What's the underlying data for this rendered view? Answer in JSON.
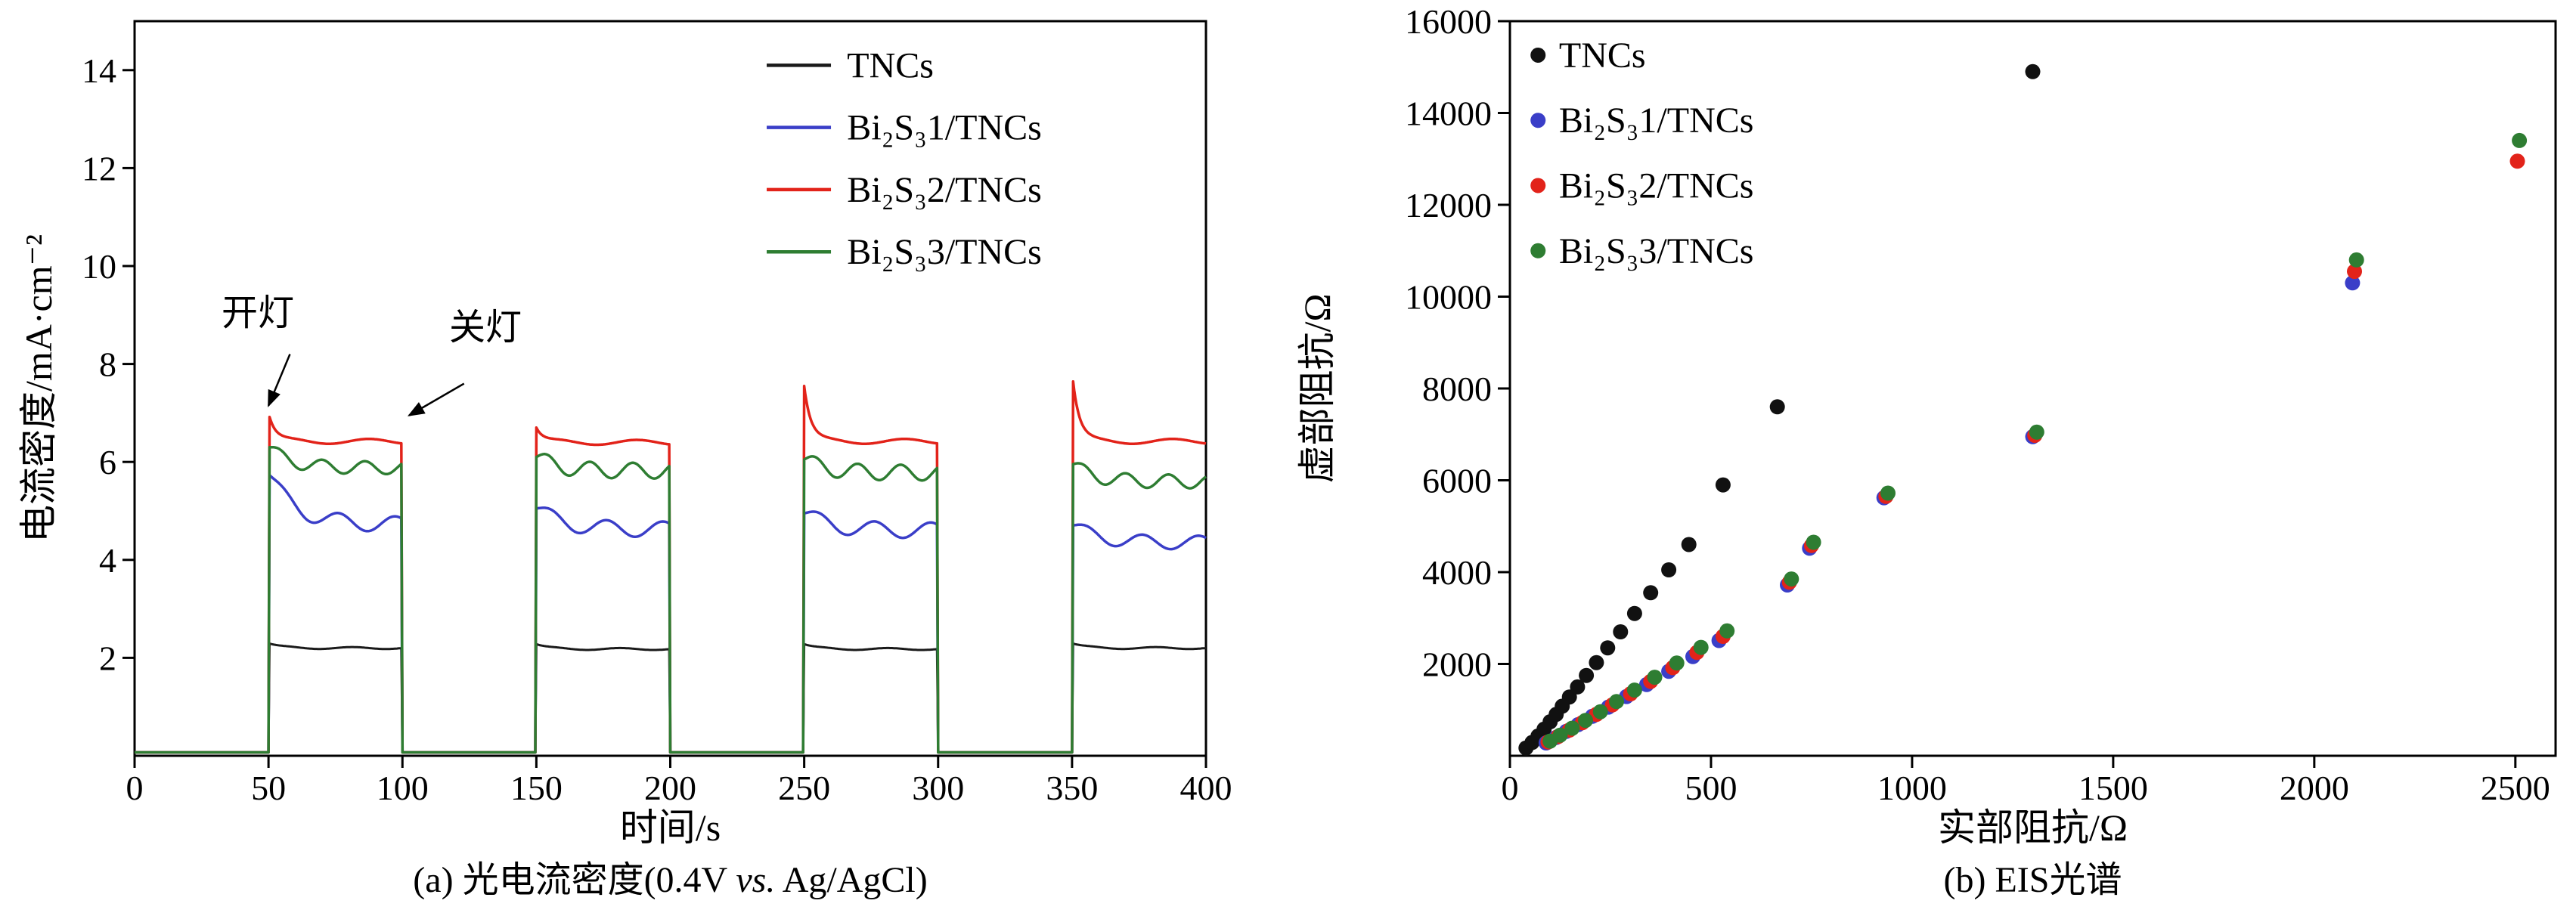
{
  "panel_a": {
    "caption_prefix": "(a) 光电流密度(0.4V ",
    "caption_vs": "vs.",
    "caption_suffix": " Ag/AgCl)"
  },
  "panel_b": {
    "caption": "(b) EIS光谱"
  },
  "chart_data": [
    {
      "type": "line",
      "name": "photocurrent",
      "title": "",
      "xlabel": "时间/s",
      "ylabel": "电流密度/mA·cm⁻²",
      "xlim": [
        0,
        400
      ],
      "ylim": [
        0,
        15
      ],
      "xticks": [
        0,
        50,
        100,
        150,
        200,
        250,
        300,
        350,
        400
      ],
      "yticks": [
        2,
        4,
        6,
        8,
        10,
        12,
        14
      ],
      "grid": false,
      "light_on_intervals": [
        [
          50,
          100
        ],
        [
          150,
          200
        ],
        [
          250,
          300
        ],
        [
          350,
          400
        ]
      ],
      "off_level": 0.07,
      "series": [
        {
          "name": "TNCs",
          "color": "#1a1a1a",
          "decay": 4,
          "wave_period": 25,
          "cycles": [
            {
              "spike": 2.3,
              "plateau": 2.2,
              "wave": 0.02
            },
            {
              "spike": 2.28,
              "plateau": 2.18,
              "wave": 0.02
            },
            {
              "spike": 2.28,
              "plateau": 2.18,
              "wave": 0.02
            },
            {
              "spike": 2.3,
              "plateau": 2.2,
              "wave": 0.02
            }
          ]
        },
        {
          "name": "Bi₂S₃1/TNCs",
          "color": "#3a3ec8",
          "decay": 10,
          "wave_period": 21,
          "cycles": [
            {
              "spike": 5.75,
              "plateau": 4.72,
              "wave": 0.16
            },
            {
              "spike": 5.05,
              "plateau": 4.62,
              "wave": 0.16
            },
            {
              "spike": 4.95,
              "plateau": 4.6,
              "wave": 0.16
            },
            {
              "spike": 4.7,
              "plateau": 4.35,
              "wave": 0.14
            }
          ]
        },
        {
          "name": "Bi₂S₃2/TNCs",
          "color": "#e2231a",
          "decay": 2.5,
          "wave_period": 30,
          "cycles": [
            {
              "spike": 7.0,
              "plateau": 6.42,
              "wave": 0.05
            },
            {
              "spike": 6.7,
              "plateau": 6.4,
              "wave": 0.05
            },
            {
              "spike": 7.55,
              "plateau": 6.42,
              "wave": 0.05
            },
            {
              "spike": 7.85,
              "plateau": 6.42,
              "wave": 0.05
            }
          ]
        },
        {
          "name": "Bi₂S₃3/TNCs",
          "color": "#2e7d32",
          "decay": 8,
          "wave_period": 16,
          "cycles": [
            {
              "spike": 6.3,
              "plateau": 5.88,
              "wave": 0.13
            },
            {
              "spike": 6.1,
              "plateau": 5.82,
              "wave": 0.16
            },
            {
              "spike": 6.05,
              "plateau": 5.78,
              "wave": 0.16
            },
            {
              "spike": 5.95,
              "plateau": 5.6,
              "wave": 0.14
            }
          ]
        }
      ],
      "legend": {
        "position": "upper-center",
        "x_line_start": 236,
        "x_line_end": 260,
        "x_label": 266,
        "y_start": 14.1,
        "y_step": 1.27
      },
      "annotations": [
        {
          "text": "开灯",
          "x": 46,
          "y": 8.8,
          "tail_x": 58,
          "tail_y": 8.2,
          "head_x": 50,
          "head_y": 7.15
        },
        {
          "text": "关灯",
          "x": 131,
          "y": 8.5,
          "tail_x": 123,
          "tail_y": 7.6,
          "head_x": 102.5,
          "head_y": 6.95
        }
      ]
    },
    {
      "type": "scatter",
      "name": "eis",
      "title": "",
      "xlabel": "实部阻抗/Ω",
      "ylabel": "虚部阻抗/Ω",
      "xlim": [
        0,
        2600
      ],
      "ylim": [
        0,
        16000
      ],
      "xticks": [
        0,
        500,
        1000,
        1500,
        2000,
        2500
      ],
      "yticks": [
        2000,
        4000,
        6000,
        8000,
        10000,
        12000,
        14000,
        16000
      ],
      "grid": false,
      "marker_radius": 10,
      "series": [
        {
          "name": "TNCs",
          "color": "#111111",
          "points": [
            [
              40,
              170
            ],
            [
              55,
              290
            ],
            [
              70,
              430
            ],
            [
              85,
              580
            ],
            [
              100,
              740
            ],
            [
              115,
              900
            ],
            [
              130,
              1080
            ],
            [
              148,
              1280
            ],
            [
              168,
              1500
            ],
            [
              190,
              1750
            ],
            [
              215,
              2030
            ],
            [
              243,
              2350
            ],
            [
              275,
              2700
            ],
            [
              310,
              3100
            ],
            [
              350,
              3550
            ],
            [
              395,
              4050
            ],
            [
              445,
              4600
            ],
            [
              530,
              5900
            ],
            [
              665,
              7600
            ],
            [
              1300,
              14900
            ]
          ]
        },
        {
          "name": "Bi₂S₃1/TNCs",
          "color": "#3a3ec8",
          "points": [
            [
              90,
              280
            ],
            [
              115,
              400
            ],
            [
              140,
              530
            ],
            [
              170,
              680
            ],
            [
              205,
              860
            ],
            [
              245,
              1060
            ],
            [
              290,
              1290
            ],
            [
              340,
              1550
            ],
            [
              395,
              1840
            ],
            [
              455,
              2160
            ],
            [
              520,
              2510
            ],
            [
              690,
              3720
            ],
            [
              745,
              4520
            ],
            [
              930,
              5620
            ],
            [
              1300,
              6950
            ],
            [
              2095,
              10300
            ]
          ]
        },
        {
          "name": "Bi₂S₃2/TNCs",
          "color": "#e2231a",
          "points": [
            [
              95,
              300
            ],
            [
              120,
              420
            ],
            [
              148,
              560
            ],
            [
              180,
              720
            ],
            [
              215,
              900
            ],
            [
              255,
              1110
            ],
            [
              300,
              1350
            ],
            [
              350,
              1620
            ],
            [
              405,
              1920
            ],
            [
              465,
              2250
            ],
            [
              530,
              2600
            ],
            [
              695,
              3780
            ],
            [
              750,
              4580
            ],
            [
              935,
              5650
            ],
            [
              1305,
              6980
            ],
            [
              2100,
              10550
            ],
            [
              2505,
              12950
            ]
          ]
        },
        {
          "name": "Bi₂S₃3/TNCs",
          "color": "#2e7d32",
          "points": [
            [
              100,
              320
            ],
            [
              125,
              450
            ],
            [
              155,
              600
            ],
            [
              188,
              770
            ],
            [
              225,
              960
            ],
            [
              265,
              1180
            ],
            [
              310,
              1430
            ],
            [
              360,
              1710
            ],
            [
              415,
              2020
            ],
            [
              475,
              2360
            ],
            [
              540,
              2720
            ],
            [
              700,
              3850
            ],
            [
              755,
              4650
            ],
            [
              940,
              5720
            ],
            [
              1310,
              7050
            ],
            [
              2105,
              10800
            ],
            [
              2510,
              13400
            ]
          ]
        }
      ],
      "legend": {
        "position": "upper-left",
        "x_marker": 70,
        "x_label": 122,
        "y_start": 15260,
        "y_step": 1420
      }
    }
  ]
}
